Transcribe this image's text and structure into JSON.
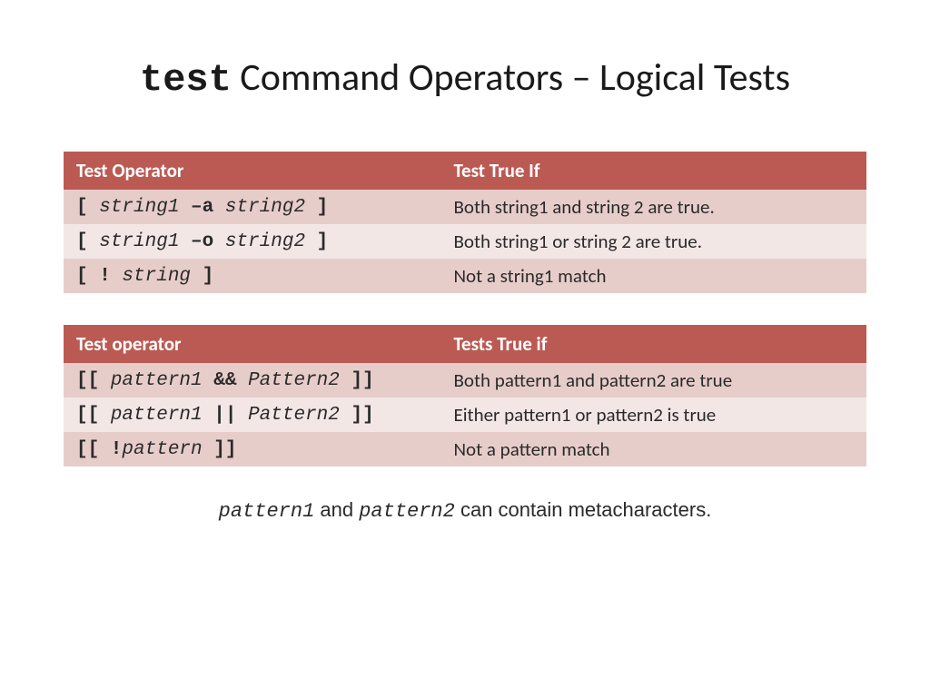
{
  "title": {
    "mono_part": "test",
    "rest": " Command Operators – Logical Tests"
  },
  "colors": {
    "header_bg": "#bb5a53",
    "row_odd_bg": "#e7cdca",
    "row_even_bg": "#f3e7e6",
    "header_text": "#ffffff",
    "body_text": "#2a2a2a"
  },
  "layout": {
    "col1_width_pct": 47,
    "col2_width_pct": 53,
    "title_fontsize": 42,
    "cell_fontsize": 21,
    "footnote_fontsize": 22
  },
  "table1": {
    "headers": [
      "Test Operator",
      "Test True If"
    ],
    "rows": [
      {
        "operator_segments": [
          {
            "text": "[ ",
            "style": "b"
          },
          {
            "text": "string1",
            "style": "i"
          },
          {
            "text": " –a ",
            "style": "b"
          },
          {
            "text": "string2",
            "style": "i"
          },
          {
            "text": " ]",
            "style": "b"
          }
        ],
        "desc": "Both string1 and string 2 are true."
      },
      {
        "operator_segments": [
          {
            "text": "[ ",
            "style": "b"
          },
          {
            "text": "string1",
            "style": "i"
          },
          {
            "text": " –o ",
            "style": "b"
          },
          {
            "text": "string2",
            "style": "i"
          },
          {
            "text": " ]",
            "style": "b"
          }
        ],
        "desc": "Both string1 or string 2 are true."
      },
      {
        "operator_segments": [
          {
            "text": "[ ! ",
            "style": "b"
          },
          {
            "text": "string",
            "style": "i"
          },
          {
            "text": " ]",
            "style": "b"
          }
        ],
        "desc": "Not a string1 match"
      }
    ]
  },
  "table2": {
    "headers": [
      "Test operator",
      "Tests True if"
    ],
    "rows": [
      {
        "operator_segments": [
          {
            "text": "[[ ",
            "style": "b"
          },
          {
            "text": "pattern1",
            "style": "i"
          },
          {
            "text": " && ",
            "style": "b"
          },
          {
            "text": "Pattern2",
            "style": "i"
          },
          {
            "text": " ]]",
            "style": "b"
          }
        ],
        "desc": "Both pattern1 and pattern2 are true"
      },
      {
        "operator_segments": [
          {
            "text": "[[ ",
            "style": "b"
          },
          {
            "text": "pattern1",
            "style": "i"
          },
          {
            "text": " || ",
            "style": "b"
          },
          {
            "text": "Pattern2",
            "style": "i"
          },
          {
            "text": " ]]",
            "style": "b"
          }
        ],
        "desc": "Either pattern1 or pattern2 is true"
      },
      {
        "operator_segments": [
          {
            "text": "[[ !",
            "style": "b"
          },
          {
            "text": "pattern",
            "style": "i"
          },
          {
            "text": " ]]",
            "style": "b"
          }
        ],
        "desc": "Not a pattern match"
      }
    ]
  },
  "footnote": {
    "segments": [
      {
        "text": "pattern1",
        "style": "mono-i"
      },
      {
        "text": " and ",
        "style": "plain"
      },
      {
        "text": "pattern2",
        "style": "mono-i"
      },
      {
        "text": " can contain metacharacters.",
        "style": "plain"
      }
    ]
  }
}
